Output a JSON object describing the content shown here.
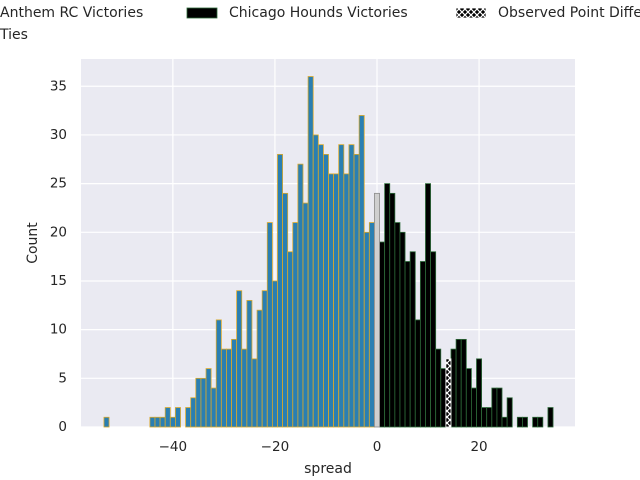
{
  "chart_data": {
    "type": "histogram",
    "x_label": "spread",
    "y_label": "Count",
    "xlim": [
      -58,
      38.8
    ],
    "ylim": [
      0,
      37.8
    ],
    "xticks": [
      {
        "value": -40,
        "label": "−40"
      },
      {
        "value": -20,
        "label": "−20"
      },
      0,
      20
    ],
    "yticks": [
      0,
      5,
      10,
      15,
      20,
      25,
      30,
      35
    ],
    "grid": true,
    "legend": "top",
    "series": [
      {
        "name": "Anthem RC Victories",
        "color": "#2a7fb2",
        "edgecolor": "#d9a82b",
        "bins": [
          -53.5,
          -52.5,
          -51.5,
          -50.5,
          -49.5,
          -48.5,
          -47.5,
          -46.5,
          -45.5,
          -44.5,
          -43.5,
          -42.5,
          -41.5,
          -40.5,
          -39.5,
          -38.5,
          -37.5,
          -36.5,
          -35.5,
          -34.5,
          -33.5,
          -32.5,
          -31.5,
          -30.5,
          -29.5,
          -28.5,
          -27.5,
          -26.5,
          -25.5,
          -24.5,
          -23.5,
          -22.5,
          -21.5,
          -20.5,
          -19.5,
          -18.5,
          -17.5,
          -16.5,
          -15.5,
          -14.5,
          -13.5,
          -12.5,
          -11.5,
          -10.5,
          -9.5,
          -8.5,
          -7.5,
          -6.5,
          -5.5,
          -4.5,
          -3.5,
          -2.5,
          -1.5,
          -0.5
        ],
        "values": [
          1,
          0,
          0,
          0,
          0,
          0,
          0,
          0,
          0,
          1,
          1,
          1,
          2,
          1,
          2,
          0,
          2,
          3,
          5,
          5,
          6,
          4,
          11,
          8,
          8,
          9,
          14,
          8,
          13,
          7,
          12,
          14,
          21,
          15,
          28,
          24,
          18,
          21,
          27,
          23,
          36,
          30,
          29,
          28,
          26,
          26,
          29,
          26,
          29,
          28,
          32,
          20,
          21
        ]
      },
      {
        "name": "Chicago Hounds Victories",
        "color": "#000000",
        "edgecolor": "#2e6b3a",
        "bins": [
          0.5,
          1.5,
          2.5,
          3.5,
          4.5,
          5.5,
          6.5,
          7.5,
          8.5,
          9.5,
          10.5,
          11.5,
          12.5,
          13.5,
          14.5,
          15.5,
          16.5,
          17.5,
          18.5,
          19.5,
          20.5,
          21.5,
          22.5,
          23.5,
          24.5,
          25.5,
          26.5,
          27.5,
          28.5,
          29.5,
          30.5,
          31.5,
          32.5,
          33.5,
          34.5
        ],
        "values": [
          19,
          25,
          24,
          21,
          20,
          17,
          18,
          11,
          17,
          25,
          18,
          8,
          6,
          7,
          8,
          9,
          9,
          6,
          4,
          7,
          2,
          2,
          4,
          4,
          1,
          3,
          0,
          1,
          1,
          0,
          1,
          1,
          0,
          2
        ]
      },
      {
        "name": "Observed Point Difference",
        "color": "#000000",
        "edgecolor": "#ffffff",
        "hatch": true,
        "bins": [
          13.5,
          14.5
        ],
        "values": [
          7
        ]
      },
      {
        "name": "Ties",
        "color": "#cfcfcf",
        "edgecolor": "#8a8a8a",
        "bins": [
          -0.5,
          0.5
        ],
        "values": [
          24
        ]
      }
    ]
  }
}
